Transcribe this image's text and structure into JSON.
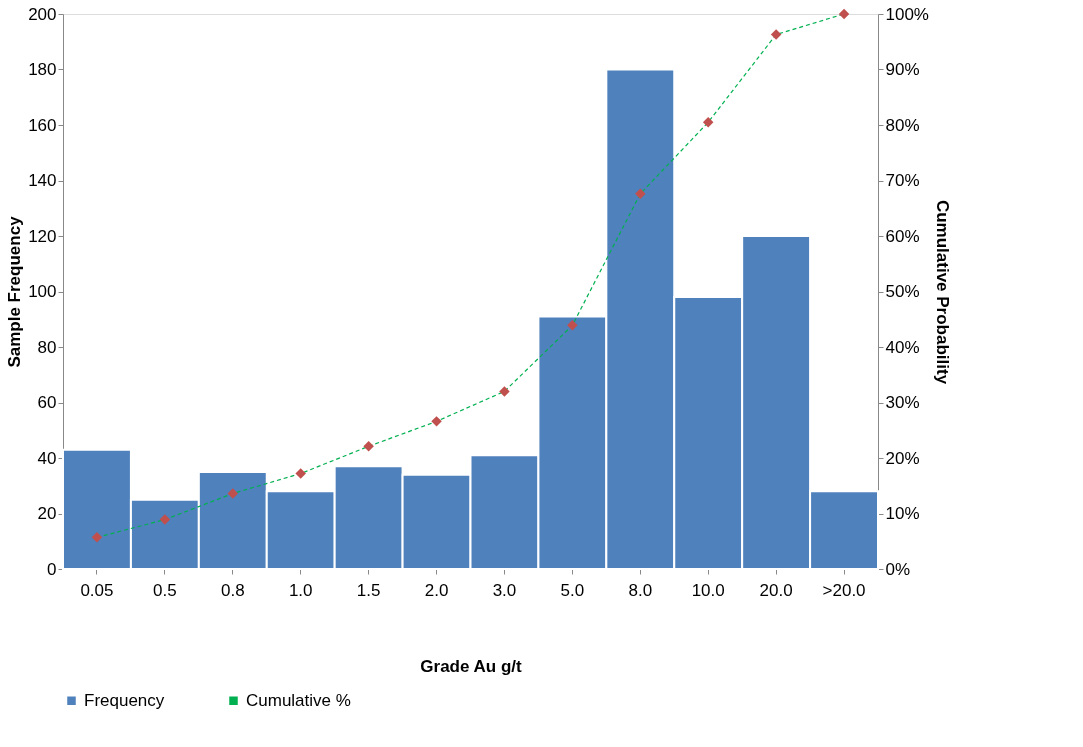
{
  "chart_data": {
    "type": "bar",
    "xlabel": "Grade Au g/t",
    "ylabel": "Sample Frequency",
    "y2label": "Cumulative Probability",
    "categories": [
      "0.05",
      "0.5",
      "0.8",
      "1.0",
      "1.5",
      "2.0",
      "3.0",
      "5.0",
      "8.0",
      "10.0",
      "20.0",
      ">20.0"
    ],
    "series": [
      {
        "name": "Frequency",
        "color": "#4f81bd",
        "values": [
          43,
          25,
          35,
          28,
          37,
          34,
          41,
          91,
          180,
          98,
          120,
          28
        ]
      },
      {
        "name": "Cumulative %",
        "type": "line",
        "axis": "y2",
        "color": "#00b050",
        "line_style": "dashed",
        "marker": "diamond",
        "colors": [
          "#c0504d",
          "#c0504d",
          "#c0504d",
          "#c0504d",
          "#c0504d",
          "#c0504d",
          "#c0504d",
          "#c0504d",
          "#c0504d",
          "#c0504d",
          "#c0504d",
          "#c0504d"
        ],
        "values": [
          5.7,
          8.9,
          13.6,
          17.2,
          22.1,
          26.6,
          32.0,
          43.9,
          67.6,
          80.5,
          96.3,
          100
        ]
      }
    ],
    "ylim": [
      0,
      200
    ],
    "yticks": [
      0,
      20,
      40,
      60,
      80,
      100,
      120,
      140,
      160,
      180,
      200
    ],
    "y2lim": [
      0,
      100
    ],
    "y2ticks": [
      {
        "value": 0,
        "label": "0%"
      },
      {
        "value": 10,
        "label": "10%"
      },
      {
        "value": 20,
        "label": "20%"
      },
      {
        "value": 30,
        "label": "30%"
      },
      {
        "value": 40,
        "label": "40%"
      },
      {
        "value": 50,
        "label": "50%"
      },
      {
        "value": 60,
        "label": "60%"
      },
      {
        "value": 70,
        "label": "70%"
      },
      {
        "value": 80,
        "label": "80%"
      },
      {
        "value": 90,
        "label": "90%"
      },
      {
        "value": 100,
        "label": "100%"
      }
    ],
    "grid": false,
    "legend": "bottom"
  }
}
